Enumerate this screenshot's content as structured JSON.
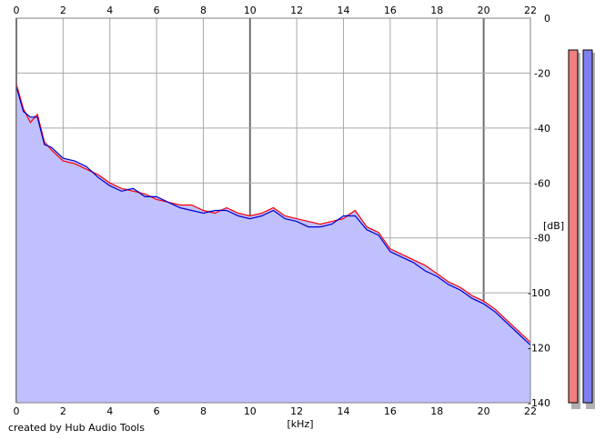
{
  "credit": "created by Hub Audio Tools",
  "chart_data": {
    "type": "line",
    "xlabel": "[kHz]",
    "ylabel": "[dB]",
    "xlim": [
      0,
      22
    ],
    "ylim": [
      -140,
      0
    ],
    "x_ticks": [
      0,
      2,
      4,
      6,
      8,
      10,
      12,
      14,
      16,
      18,
      20,
      22
    ],
    "y_ticks_right": [
      0,
      -20,
      -40,
      -60,
      -80,
      -100,
      -120,
      -140
    ],
    "grid": true,
    "fill_color": "#c0c0ff",
    "series": [
      {
        "color": "#ff0000",
        "x": [
          0,
          0.3,
          0.6,
          0.9,
          1.2,
          1.5,
          2,
          2.5,
          3,
          3.5,
          4,
          4.5,
          5,
          5.5,
          6,
          6.5,
          7,
          7.5,
          8,
          8.5,
          9,
          9.5,
          10,
          10.5,
          11,
          11.5,
          12,
          12.5,
          13,
          13.5,
          14,
          14.5,
          15,
          15.5,
          16,
          16.5,
          17,
          17.5,
          18,
          18.5,
          19,
          19.5,
          20,
          20.5,
          21,
          21.5,
          22
        ],
        "values": [
          -24,
          -33,
          -38,
          -35,
          -45,
          -48,
          -52,
          -53,
          -55,
          -57,
          -60,
          -62,
          -63,
          -64,
          -66,
          -67,
          -68,
          -68,
          -70,
          -71,
          -69,
          -71,
          -72,
          -71,
          -69,
          -72,
          -73,
          -74,
          -75,
          -74,
          -73,
          -70,
          -76,
          -78,
          -84,
          -86,
          -88,
          -90,
          -93,
          -96,
          -98,
          -101,
          -103,
          -106,
          -110,
          -114,
          -118
        ]
      },
      {
        "color": "#0000c8",
        "x": [
          0,
          0.3,
          0.6,
          0.9,
          1.2,
          1.5,
          2,
          2.5,
          3,
          3.5,
          4,
          4.5,
          5,
          5.5,
          6,
          6.5,
          7,
          7.5,
          8,
          8.5,
          9,
          9.5,
          10,
          10.5,
          11,
          11.5,
          12,
          12.5,
          13,
          13.5,
          14,
          14.5,
          15,
          15.5,
          16,
          16.5,
          17,
          17.5,
          18,
          18.5,
          19,
          19.5,
          20,
          20.5,
          21,
          21.5,
          22
        ],
        "values": [
          -25,
          -34,
          -36,
          -36,
          -46,
          -47,
          -51,
          -52,
          -54,
          -58,
          -61,
          -63,
          -62,
          -65,
          -65,
          -67,
          -69,
          -70,
          -71,
          -70,
          -70,
          -72,
          -73,
          -72,
          -70,
          -73,
          -74,
          -76,
          -76,
          -75,
          -72,
          -72,
          -77,
          -79,
          -85,
          -87,
          -89,
          -92,
          -94,
          -97,
          -99,
          -102,
          -104,
          -107,
          -111,
          -115,
          -119
        ]
      }
    ]
  },
  "meters": {
    "left_color": "#f08080",
    "right_color": "#8080f0"
  }
}
